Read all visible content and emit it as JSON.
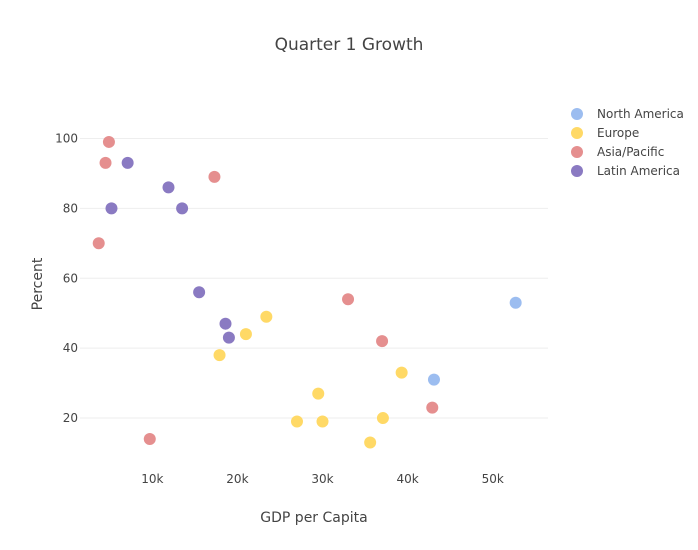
{
  "chart_data": {
    "type": "scatter",
    "title": "Quarter 1 Growth",
    "xlabel": "GDP per Capita",
    "ylabel": "Percent",
    "xlim": [
      1500,
      56500
    ],
    "ylim": [
      8,
      111
    ],
    "xticks": [
      {
        "value": 10000,
        "label": "10k"
      },
      {
        "value": 20000,
        "label": "20k"
      },
      {
        "value": 30000,
        "label": "30k"
      },
      {
        "value": 40000,
        "label": "40k"
      },
      {
        "value": 50000,
        "label": "50k"
      }
    ],
    "yticks": [
      {
        "value": 20,
        "label": "20"
      },
      {
        "value": 40,
        "label": "40"
      },
      {
        "value": 60,
        "label": "60"
      },
      {
        "value": 80,
        "label": "80"
      },
      {
        "value": 100,
        "label": "100"
      }
    ],
    "grid": true,
    "legend_position": "top-right",
    "series": [
      {
        "name": "North America",
        "color": "#9cbdf0",
        "points": [
          [
            52700,
            53
          ],
          [
            43100,
            31
          ]
        ]
      },
      {
        "name": "Europe",
        "color": "#ffd966",
        "points": [
          [
            23400,
            49
          ],
          [
            21000,
            44
          ],
          [
            17900,
            38
          ],
          [
            39300,
            33
          ],
          [
            29500,
            27
          ],
          [
            27000,
            19
          ],
          [
            30000,
            19
          ],
          [
            37100,
            20
          ],
          [
            35600,
            13
          ]
        ]
      },
      {
        "name": "Asia/Pacific",
        "color": "#e58f8f",
        "points": [
          [
            4900,
            99
          ],
          [
            4500,
            93
          ],
          [
            17300,
            89
          ],
          [
            3700,
            70
          ],
          [
            33000,
            54
          ],
          [
            37000,
            42
          ],
          [
            42900,
            23
          ],
          [
            9700,
            14
          ]
        ]
      },
      {
        "name": "Latin America",
        "color": "#8a7ac2",
        "points": [
          [
            7100,
            93
          ],
          [
            11900,
            86
          ],
          [
            5200,
            80
          ],
          [
            13500,
            80
          ],
          [
            15500,
            56
          ],
          [
            18600,
            47
          ],
          [
            19000,
            43
          ]
        ]
      }
    ]
  }
}
